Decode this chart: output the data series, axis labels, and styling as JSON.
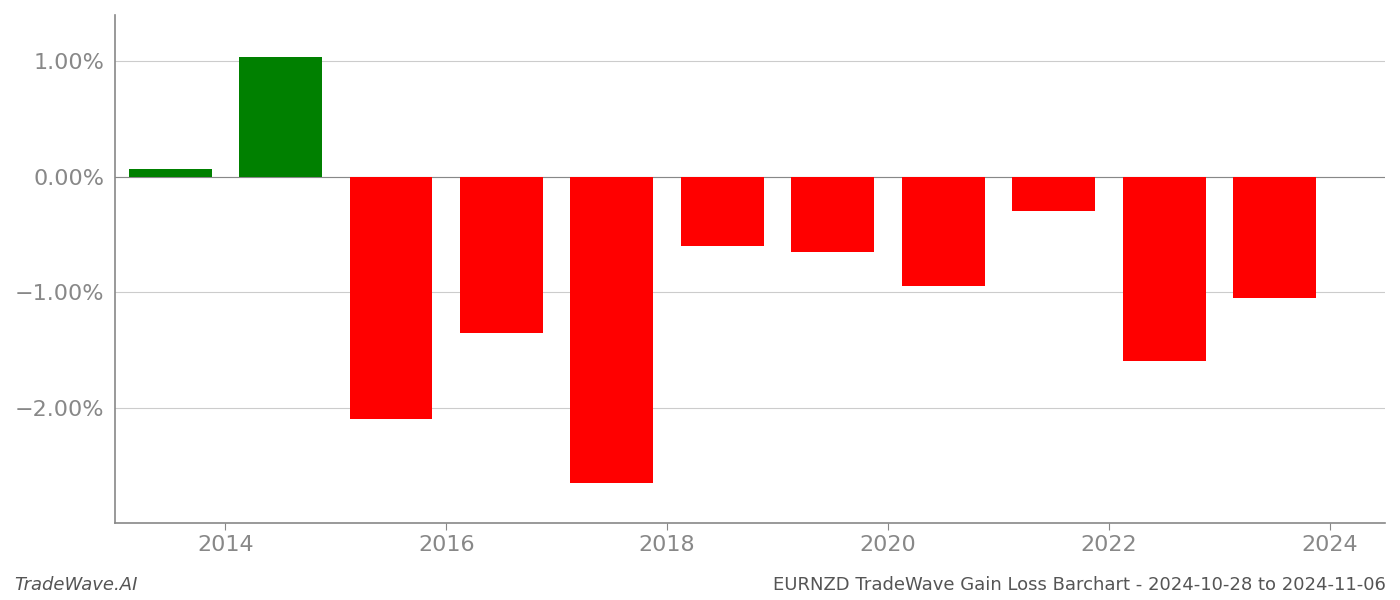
{
  "bar_centers": [
    2013.5,
    2014.5,
    2015.5,
    2016.5,
    2017.5,
    2018.5,
    2019.5,
    2020.5,
    2021.5,
    2022.5,
    2023.5
  ],
  "values": [
    0.0007,
    0.0104,
    -0.021,
    -0.0135,
    -0.0265,
    -0.006,
    -0.0065,
    -0.0095,
    -0.003,
    -0.016,
    -0.0105
  ],
  "colors": [
    "#008000",
    "#008000",
    "#ff0000",
    "#ff0000",
    "#ff0000",
    "#ff0000",
    "#ff0000",
    "#ff0000",
    "#ff0000",
    "#ff0000",
    "#ff0000"
  ],
  "ylim": [
    -0.03,
    0.014
  ],
  "ytick_vals": [
    0.01,
    0.0,
    -0.01,
    -0.02
  ],
  "yticklabels": [
    "1.00%",
    "0.00%",
    "−1.00%",
    "−2.00%"
  ],
  "xtick_positions": [
    2014,
    2016,
    2018,
    2020,
    2022,
    2024
  ],
  "xtick_labels": [
    "2014",
    "2016",
    "2018",
    "2020",
    "2022",
    "2024"
  ],
  "xlim": [
    2013.0,
    2024.5
  ],
  "bar_width": 0.75,
  "background_color": "#ffffff",
  "grid_color": "#cccccc",
  "axis_color": "#888888",
  "text_color": "#888888",
  "font_size_ticks": 16,
  "font_size_bottom": 13,
  "bottom_left_text": "TradeWave.AI",
  "bottom_right_text": "EURNZD TradeWave Gain Loss Barchart - 2024-10-28 to 2024-11-06"
}
